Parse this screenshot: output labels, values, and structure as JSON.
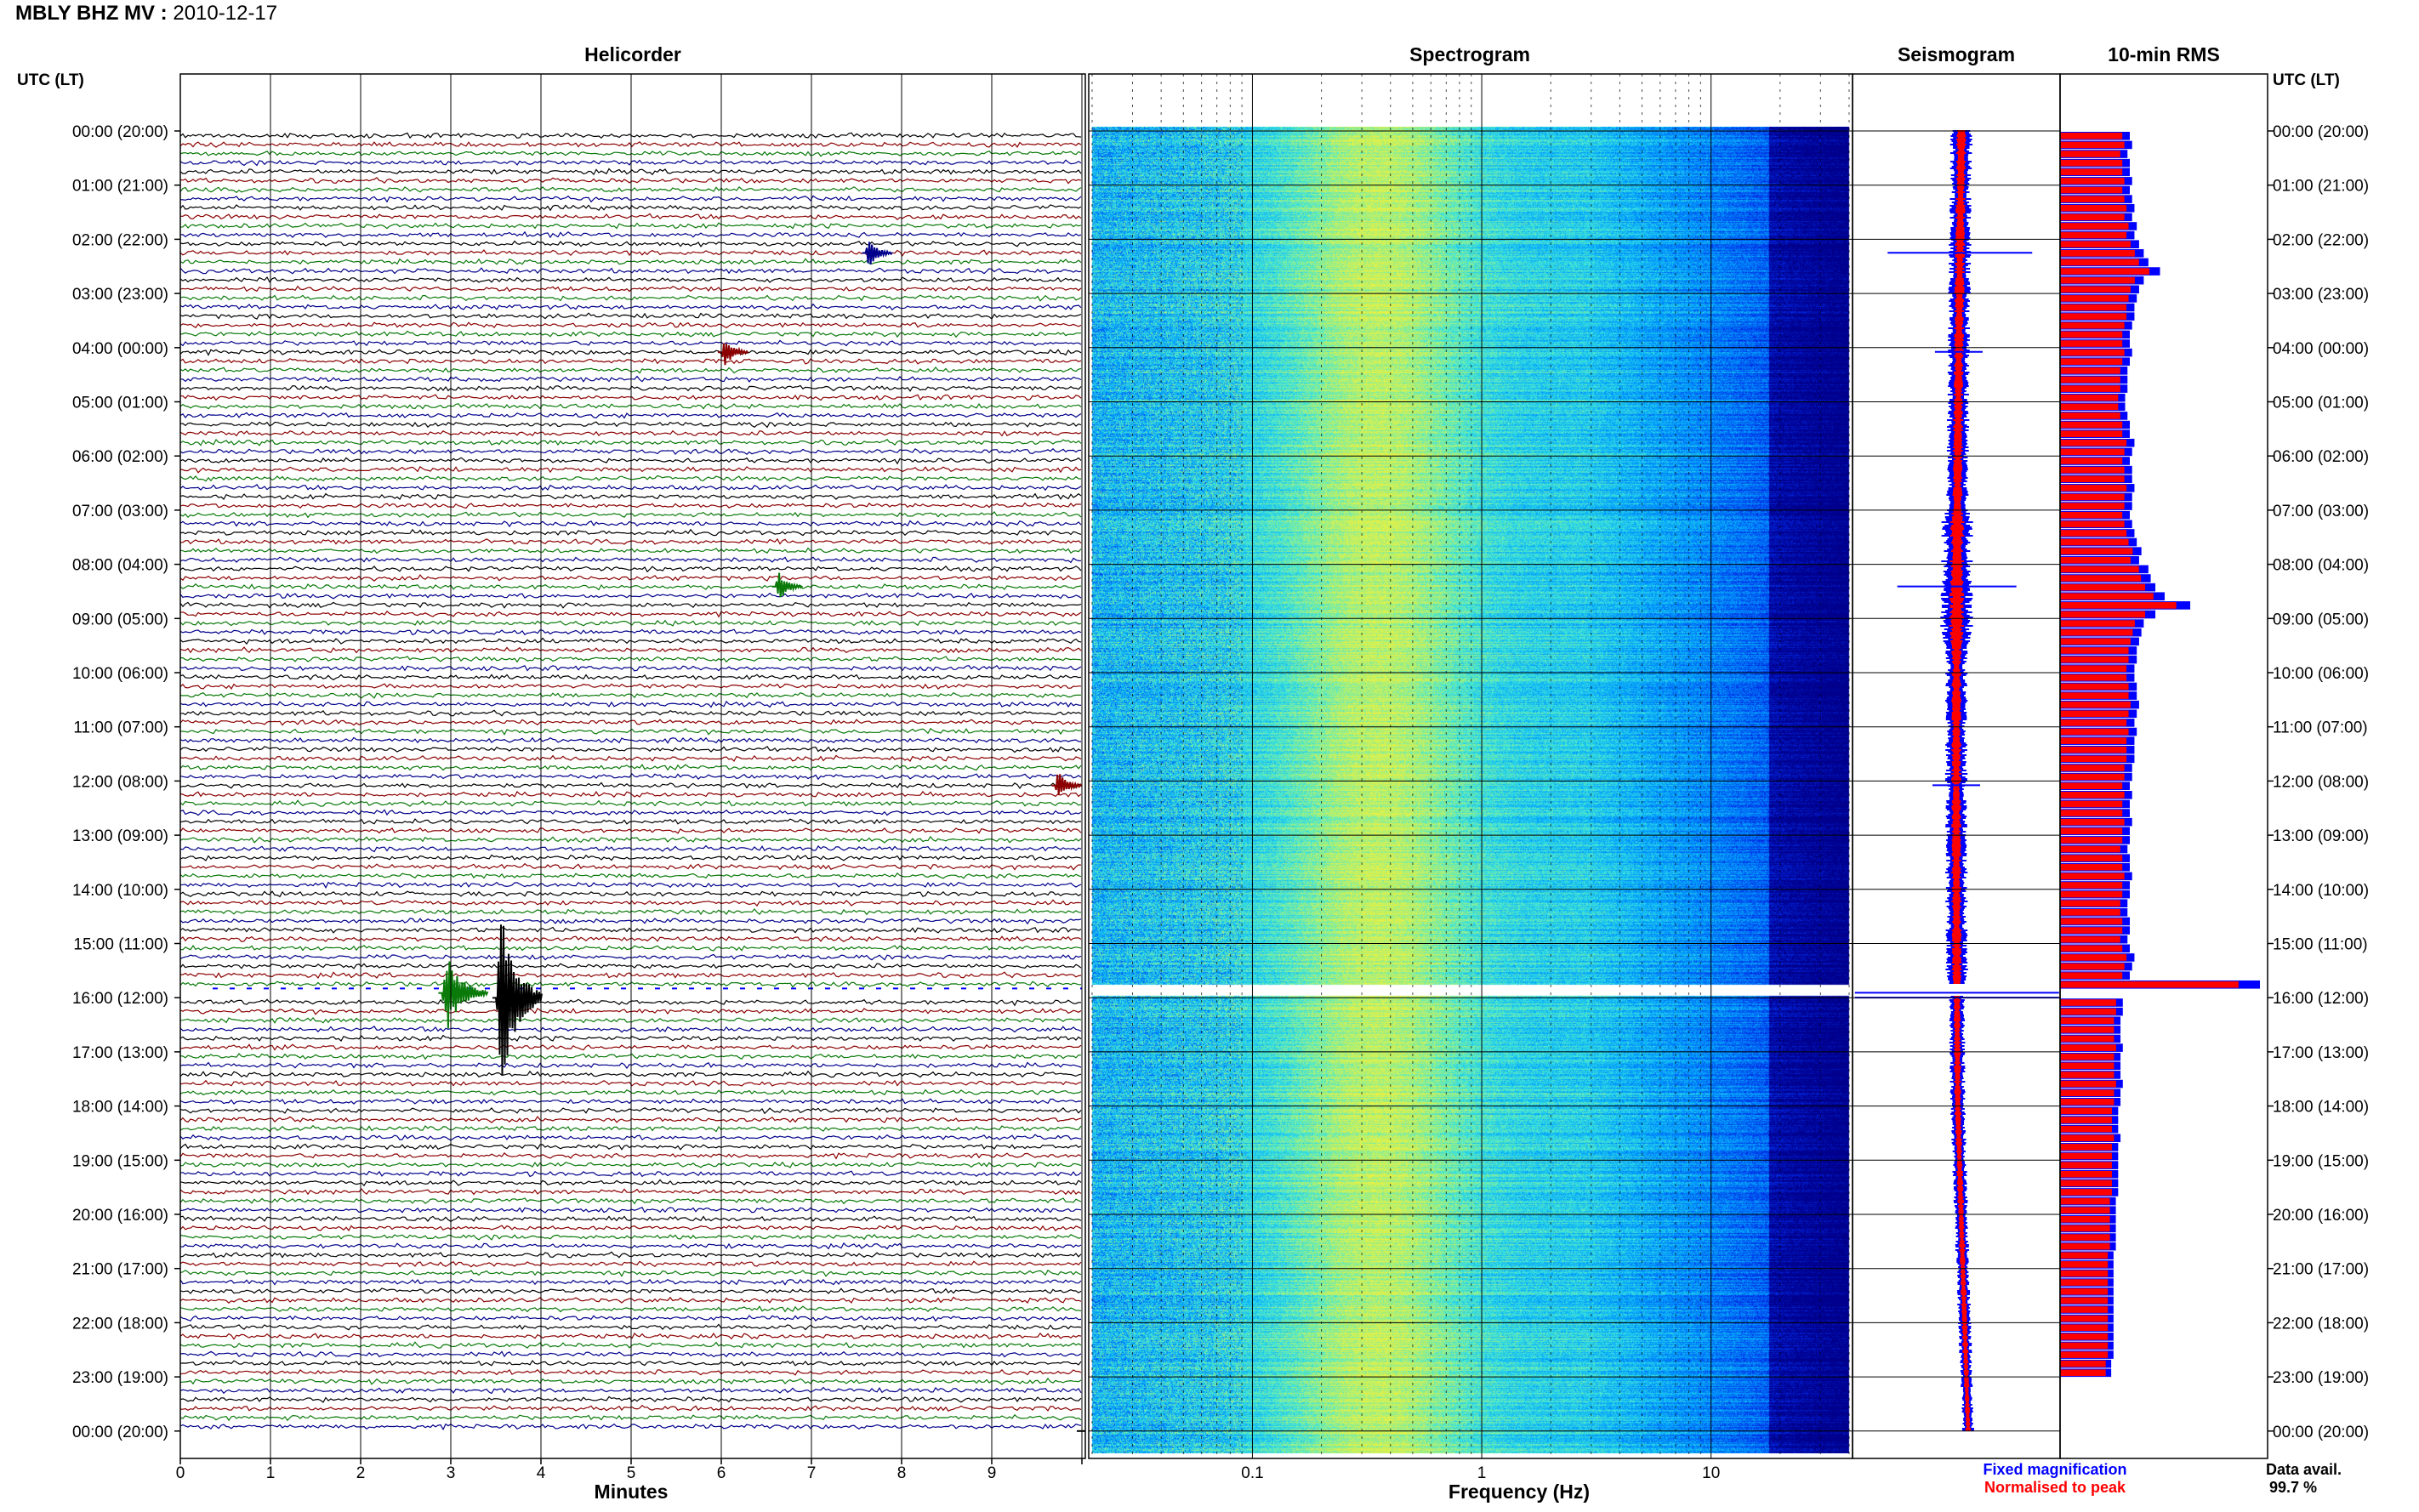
{
  "header": {
    "station": "MBLY BHZ MV :",
    "date": "2010-12-17"
  },
  "panels": {
    "helicorder": "Helicorder",
    "spectrogram": "Spectrogram",
    "seismogram": "Seismogram",
    "rms": "10-min RMS"
  },
  "axis_labels": {
    "left_time": "UTC (LT)",
    "right_time": "UTC (LT)",
    "helicorder_x": "Minutes",
    "spectrogram_x": "Frequency (Hz)"
  },
  "legend": {
    "fixed": "Fixed magnification",
    "normalised": "Normalised to peak",
    "fixed_color": "#0000ff",
    "normalised_color": "#ff0000"
  },
  "data_availability": {
    "label": "Data avail.",
    "value": "99.7 %"
  },
  "colors": {
    "trace_cycle": [
      "#000000",
      "#8b0000",
      "#0a7a0a",
      "#00008b"
    ],
    "spectrogram_low": "#0000a0",
    "spectrogram_high": "#e6e632"
  },
  "chart_data": {
    "type": "helicorder",
    "hour_ticks": [
      "00:00 (20:00)",
      "01:00 (21:00)",
      "02:00 (22:00)",
      "03:00 (23:00)",
      "04:00 (00:00)",
      "05:00 (01:00)",
      "06:00 (02:00)",
      "07:00 (03:00)",
      "08:00 (04:00)",
      "09:00 (05:00)",
      "10:00 (06:00)",
      "11:00 (07:00)",
      "12:00 (08:00)",
      "13:00 (09:00)",
      "14:00 (10:00)",
      "15:00 (11:00)",
      "16:00 (12:00)",
      "17:00 (13:00)",
      "18:00 (14:00)",
      "19:00 (15:00)",
      "20:00 (16:00)",
      "21:00 (17:00)",
      "22:00 (18:00)",
      "23:00 (19:00)",
      "00:00 (20:00)"
    ],
    "helicorder_x_ticks": [
      "0",
      "1",
      "2",
      "3",
      "4",
      "5",
      "6",
      "7",
      "8",
      "9"
    ],
    "helicorder_xlim": [
      0,
      10
    ],
    "lines_per_hour": 6,
    "spectrogram_x_ticks": [
      "0.1",
      "1",
      "10"
    ],
    "spectrogram_xlim": [
      0.02,
      40
    ],
    "spectrogram_xscale": "log",
    "data_gap_hours": [
      15.75,
      15.95
    ],
    "events": [
      {
        "hour": 2.17,
        "minute": 7.6,
        "color": "#00008b"
      },
      {
        "hour": 4.0,
        "minute": 6.0,
        "color": "#8b0000"
      },
      {
        "hour": 8.33,
        "minute": 6.6,
        "color": "#0a7a0a"
      },
      {
        "hour": 12.0,
        "minute": 9.7,
        "color": "#8b0000"
      },
      {
        "hour": 15.83,
        "minute": 2.9,
        "color": "#0a7a0a"
      },
      {
        "hour": 15.92,
        "minute": 3.5,
        "color": "#000000"
      }
    ],
    "rms_10min": [
      0.3,
      0.31,
      0.29,
      0.3,
      0.3,
      0.31,
      0.3,
      0.31,
      0.32,
      0.31,
      0.33,
      0.32,
      0.34,
      0.36,
      0.38,
      0.43,
      0.36,
      0.34,
      0.33,
      0.32,
      0.32,
      0.31,
      0.3,
      0.3,
      0.31,
      0.3,
      0.29,
      0.29,
      0.29,
      0.28,
      0.28,
      0.29,
      0.3,
      0.3,
      0.32,
      0.31,
      0.3,
      0.31,
      0.31,
      0.32,
      0.31,
      0.31,
      0.3,
      0.31,
      0.32,
      0.33,
      0.35,
      0.34,
      0.38,
      0.39,
      0.41,
      0.45,
      0.56,
      0.41,
      0.36,
      0.35,
      0.34,
      0.33,
      0.33,
      0.32,
      0.32,
      0.33,
      0.33,
      0.34,
      0.33,
      0.32,
      0.33,
      0.32,
      0.32,
      0.32,
      0.31,
      0.31,
      0.3,
      0.31,
      0.3,
      0.3,
      0.31,
      0.3,
      0.3,
      0.29,
      0.3,
      0.3,
      0.31,
      0.3,
      0.3,
      0.29,
      0.29,
      0.3,
      0.3,
      0.29,
      0.3,
      0.32,
      0.31,
      0.3,
      0.86,
      0.95,
      0.27,
      0.27,
      0.26,
      0.26,
      0.26,
      0.27,
      0.26,
      0.26,
      0.26,
      0.27,
      0.26,
      0.26,
      0.25,
      0.25,
      0.25,
      0.26,
      0.25,
      0.25,
      0.25,
      0.25,
      0.25,
      0.25,
      0.24,
      0.24,
      0.24,
      0.24,
      0.24,
      0.24,
      0.23,
      0.23,
      0.23,
      0.23,
      0.23,
      0.23,
      0.23,
      0.23,
      0.23,
      0.23,
      0.23,
      0.23,
      0.22,
      0.22
    ],
    "rms_fixed_over_normalised": 1.12
  }
}
